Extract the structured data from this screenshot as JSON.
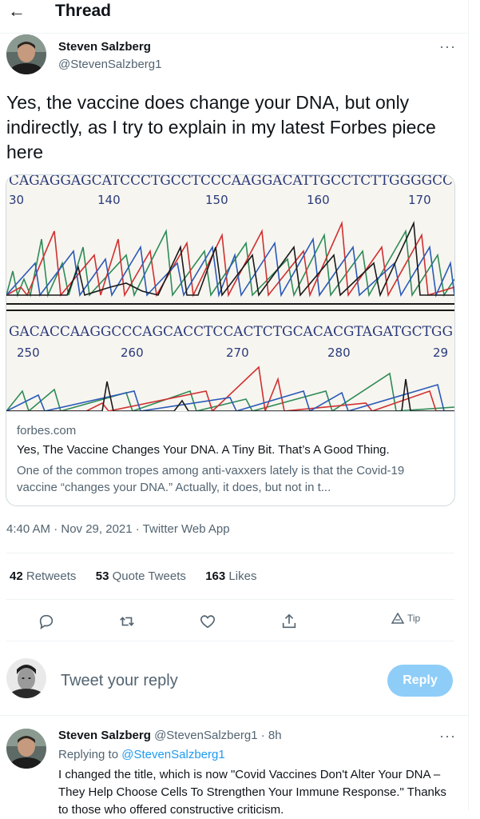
{
  "header": {
    "back_icon": "arrow-left-icon",
    "title": "Thread"
  },
  "tweet": {
    "author_name": "Steven Salzberg",
    "author_handle": "@StevenSalzberg1",
    "more_icon": "more-horizontal-icon",
    "text": "Yes, the vaccine does change your DNA, but only indirectly, as I try to explain in my latest Forbes piece here",
    "card": {
      "image_top_sequence": "CAGAGGAGCATCCCTGCCTCCCAAGGACATTGCCTCTTGGGGCC",
      "image_top_ticks": [
        "30",
        "140",
        "150",
        "160",
        "170"
      ],
      "image_bottom_sequence": "GACACCAAGGCCCAGCACCTCCACTCTGCACACGTAGATGCTGG",
      "image_bottom_ticks": [
        "250",
        "260",
        "270",
        "280",
        "29"
      ],
      "domain": "forbes.com",
      "title": "Yes, The Vaccine Changes Your DNA. A Tiny Bit. That’s A Good Thing.",
      "description": "One of the common tropes among anti-vaxxers lately is that the Covid-19 vaccine “changes your DNA.” Actually, it does, but not in t..."
    },
    "timestamp": "4:40 AM · Nov 29, 2021 · Twitter Web App",
    "stats": {
      "retweets_count": "42",
      "retweets_label": "Retweets",
      "quotes_count": "53",
      "quotes_label": "Quote Tweets",
      "likes_count": "163",
      "likes_label": "Likes"
    },
    "actions": {
      "reply_icon": "reply-icon",
      "retweet_icon": "retweet-icon",
      "like_icon": "heart-icon",
      "share_icon": "share-icon",
      "tip_label": "Tip"
    }
  },
  "composer": {
    "placeholder": "Tweet your reply",
    "button_label": "Reply"
  },
  "reply": {
    "author_name": "Steven Salzberg",
    "author_handle": "@StevenSalzberg1",
    "time": "· 8h",
    "replying_to_label": "Replying to",
    "replying_to_handle": "@StevenSalzberg1",
    "text": "I changed the title, which is now \"Covid Vaccines Don't Alter Your DNA – They Help Choose Cells To Strengthen Your Immune Response.\" Thanks to those who offered constructive criticism."
  },
  "colors": {
    "accent": "#1d9bf0",
    "reply_button_disabled": "#8ecdf8",
    "text": "#0f1419",
    "muted": "#536471"
  }
}
